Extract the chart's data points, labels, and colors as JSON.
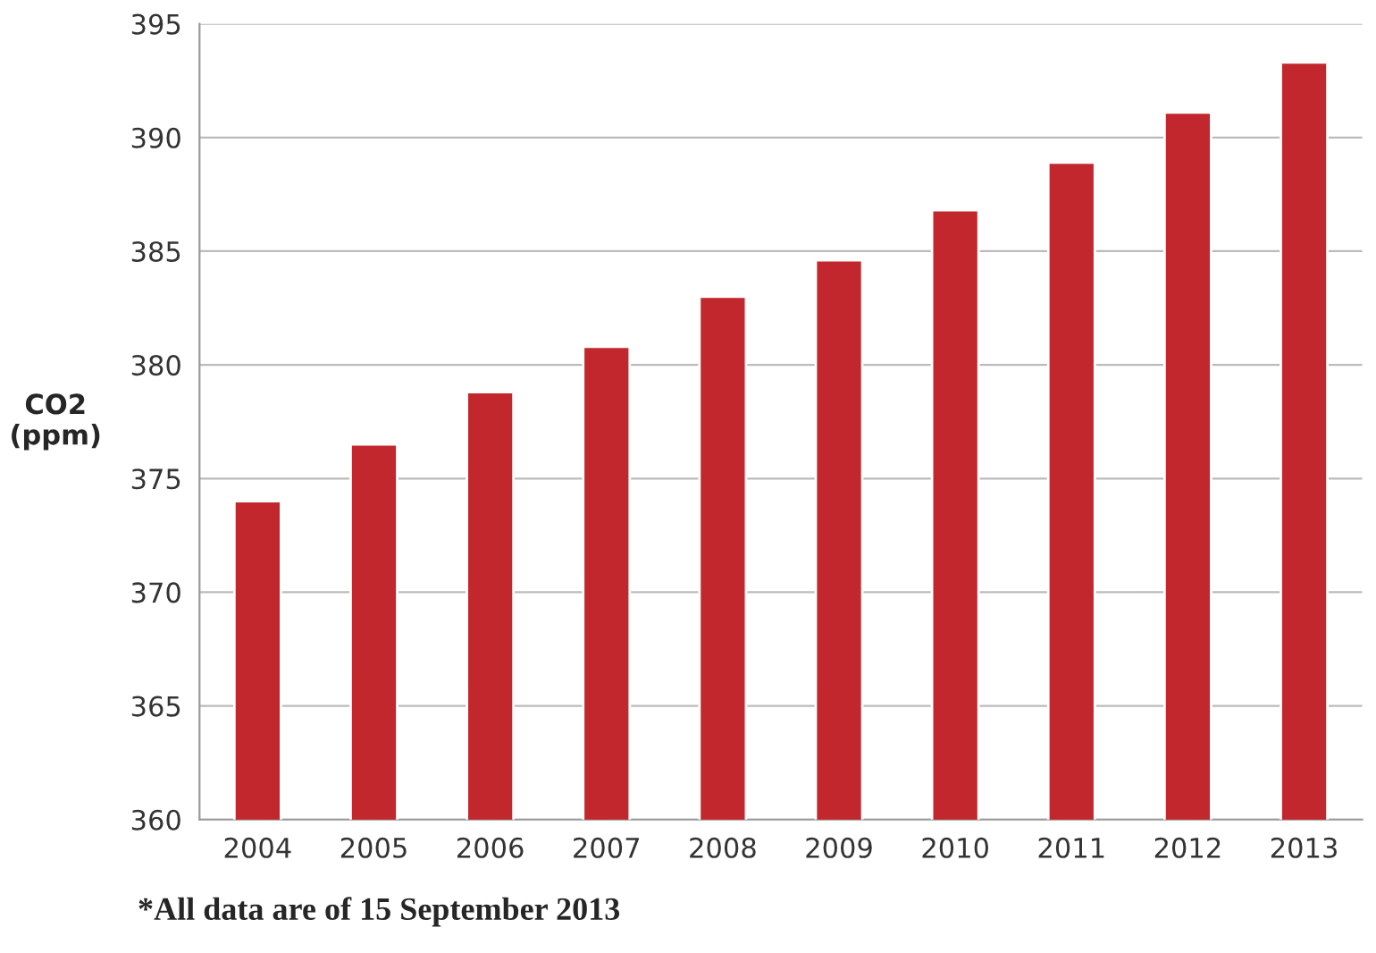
{
  "chart_data": {
    "type": "bar",
    "ylabel": "CO2\n(ppm)",
    "categories": [
      "2004",
      "2005",
      "2006",
      "2007",
      "2008",
      "2009",
      "2010",
      "2011",
      "2012",
      "2013"
    ],
    "values": [
      374.0,
      376.5,
      378.8,
      380.8,
      383.0,
      384.6,
      386.8,
      388.9,
      391.1,
      393.3
    ],
    "color": "#c1272d",
    "ylim": [
      360,
      395
    ],
    "yticks": [
      360,
      365,
      370,
      375,
      380,
      385,
      390,
      395
    ],
    "grid": "y",
    "annotations": [
      "*All data are of 15 September 2013"
    ]
  }
}
